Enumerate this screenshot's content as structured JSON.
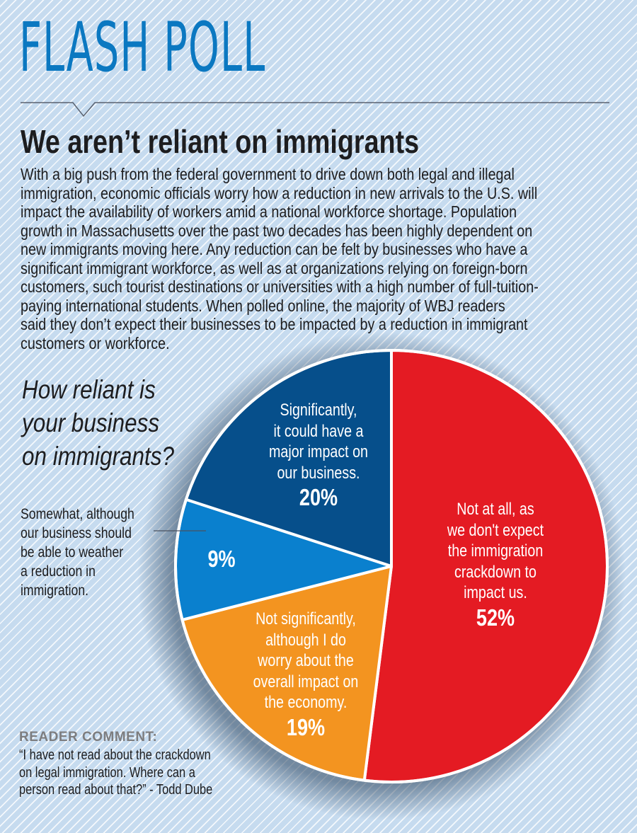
{
  "header": {
    "section_title": "FLASH POLL",
    "headline": "We aren’t reliant on immigrants",
    "body_lines": [
      "With a big push from the federal government to drive down both legal and illegal",
      "immigration, economic officials worry how a reduction in new arrivals to the U.S. will",
      "impact the availability of workers amid a national workforce shortage. Population",
      "growth in Massachusetts over the past two decades has been highly dependent on",
      "new immigrants moving here. Any reduction can be felt by businesses who have a",
      "significant immigrant workforce, as well as at organizations relying on foreign-born",
      "customers, such tourist destinations or universities with a high number of full-tuition-",
      "paying international students. When polled online, the majority of WBJ readers",
      "said they don’t expect their businesses to be impacted by a reduction in immigrant",
      "customers or workforce."
    ]
  },
  "question_lines": [
    "How reliant is",
    "your business",
    "on immigrants?"
  ],
  "colors": {
    "title_blue": "#0b78c1",
    "red": "#e41b23",
    "orange": "#f39420",
    "light_blue": "#0a80ce",
    "dark_blue": "#064f8b",
    "background": "#c6dbef"
  },
  "chart_data": {
    "type": "pie",
    "title": "How reliant is your business on immigrants?",
    "start_angle": "12 o'clock",
    "direction": "clockwise",
    "slices": [
      {
        "key": "not_at_all",
        "label": "Not at all, as we don't expect the immigration crackdown to impact us.",
        "label_lines": [
          "Not at all, as",
          "we don't expect",
          "the immigration",
          "crackdown to",
          "impact us."
        ],
        "value": 52,
        "value_label": "52%",
        "color": "#e41b23"
      },
      {
        "key": "not_significantly",
        "label": "Not significantly, although I do worry about the overall impact on the economy.",
        "label_lines": [
          "Not significantly,",
          "although I do",
          "worry about the",
          "overall impact on",
          "the economy."
        ],
        "value": 19,
        "value_label": "19%",
        "color": "#f39420"
      },
      {
        "key": "somewhat",
        "label": "Somewhat, although our business should be able to weather a reduction in immigration.",
        "label_lines": [
          "Somewhat, although",
          "our business should",
          "be able to weather",
          "a reduction in",
          "immigration."
        ],
        "value": 9,
        "value_label": "9%",
        "color": "#0a80ce",
        "label_outside": true
      },
      {
        "key": "significantly",
        "label": "Significantly, it could have a major impact on our business.",
        "label_lines": [
          "Significantly,",
          "it could have a",
          "major impact on",
          "our business."
        ],
        "value": 20,
        "value_label": "20%",
        "color": "#064f8b"
      }
    ]
  },
  "reader_comment": {
    "heading": "READER COMMENT:",
    "quote_lines": [
      "“I have not read about the crackdown",
      "on legal immigration. Where can a",
      "person read about that?” - Todd Dube"
    ]
  }
}
